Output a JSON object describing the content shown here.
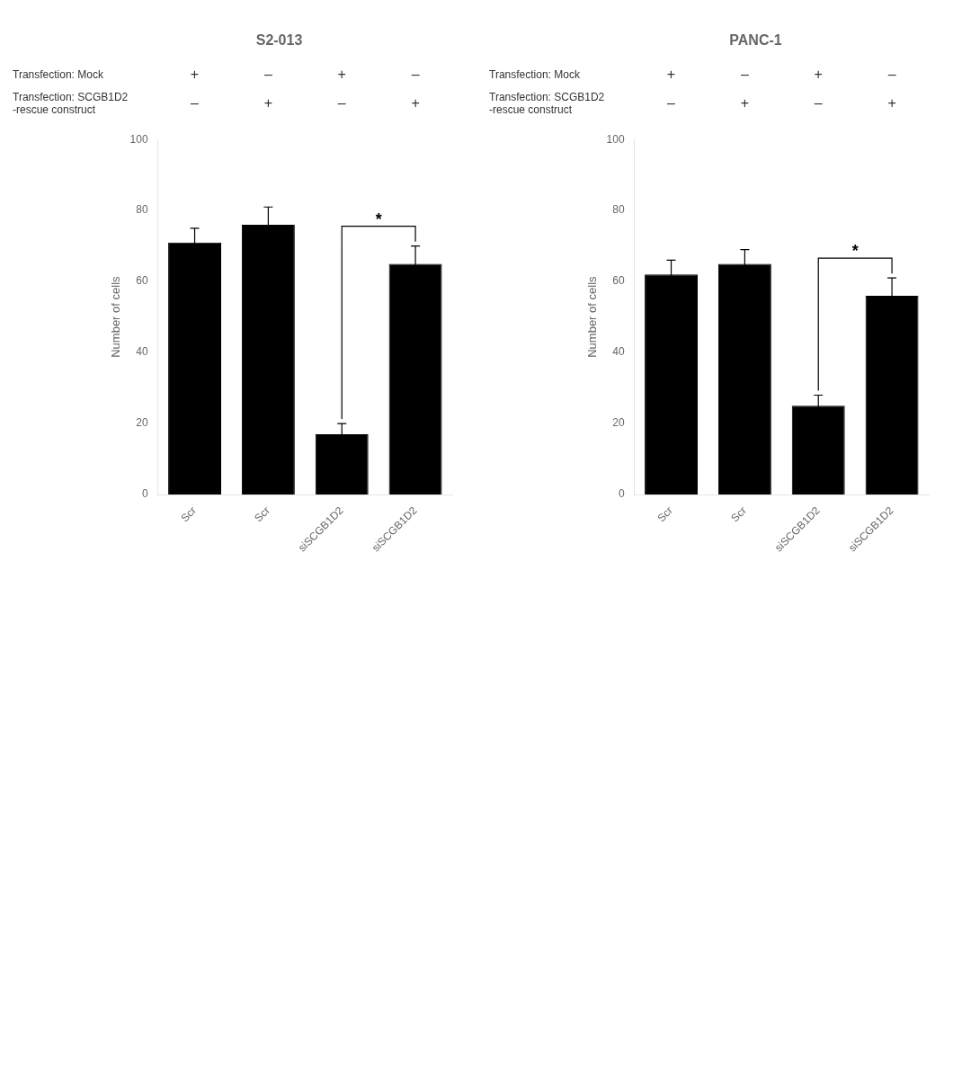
{
  "chart_data": [
    {
      "type": "bar",
      "title": "S2-013",
      "categories": [
        "Scr",
        "Scr",
        "siSCGB1D2",
        "siSCGB1D2"
      ],
      "values": [
        71,
        76,
        17,
        65
      ],
      "errors": [
        4,
        5,
        3,
        5
      ],
      "ylabel": "Number of cells",
      "ylim": [
        0,
        100
      ],
      "yticks": [
        0,
        20,
        40,
        60,
        80,
        100
      ],
      "color": "#000000",
      "grid": false,
      "legend": false,
      "annotations": [
        {
          "text": "*",
          "from": 2,
          "to": 3
        }
      ],
      "rows": [
        {
          "label": [
            "Transfection: Mock"
          ],
          "signs": [
            "+",
            "–",
            "+",
            "–"
          ]
        },
        {
          "label": [
            "Transfection: SCGB1D2",
            "-rescue construct"
          ],
          "signs": [
            "–",
            "+",
            "–",
            "+"
          ]
        }
      ]
    },
    {
      "type": "bar",
      "title": "PANC-1",
      "categories": [
        "Scr",
        "Scr",
        "siSCGB1D2",
        "siSCGB1D2"
      ],
      "values": [
        62,
        65,
        25,
        56
      ],
      "errors": [
        4,
        4,
        3,
        5
      ],
      "ylabel": "Number of cells",
      "ylim": [
        0,
        100
      ],
      "yticks": [
        0,
        20,
        40,
        60,
        80,
        100
      ],
      "color": "#000000",
      "grid": false,
      "legend": false,
      "annotations": [
        {
          "text": "*",
          "from": 2,
          "to": 3
        }
      ],
      "rows": [
        {
          "label": [
            "Transfection: Mock"
          ],
          "signs": [
            "+",
            "–",
            "+",
            "–"
          ]
        },
        {
          "label": [
            "Transfection: SCGB1D2",
            "-rescue construct"
          ],
          "signs": [
            "–",
            "+",
            "–",
            "+"
          ]
        }
      ]
    }
  ]
}
